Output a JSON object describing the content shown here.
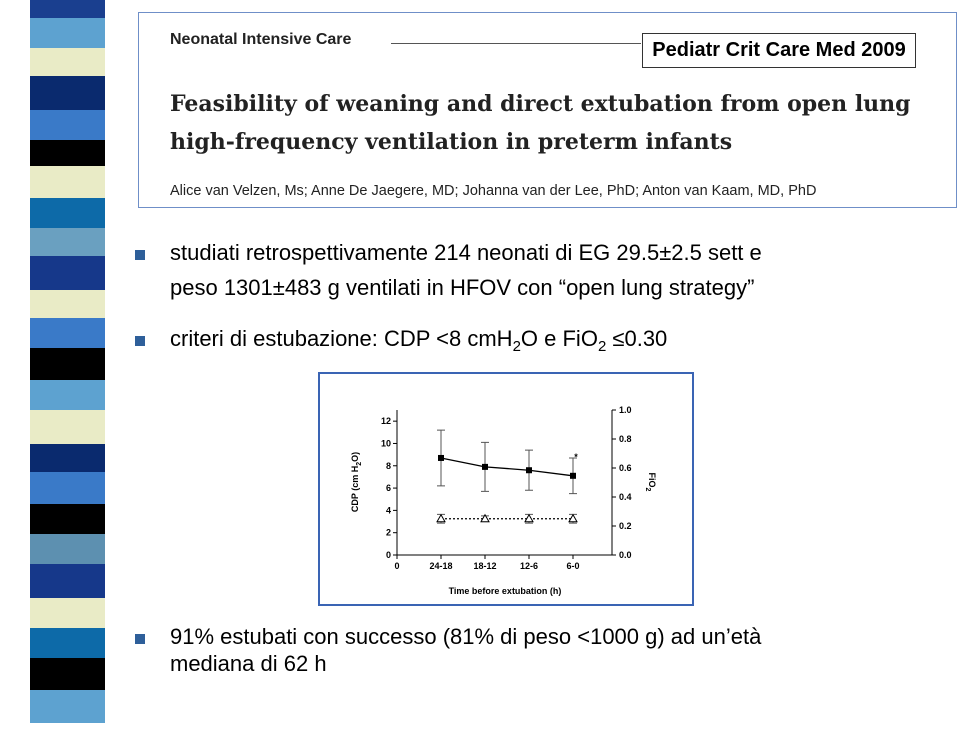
{
  "header": {
    "section": "Neonatal Intensive Care",
    "journal": "Pediatr Crit Care Med 2009",
    "title_lines": [
      "Feasibility of weaning and direct extubation from open lung",
      "high-frequency ventilation in preterm infants"
    ],
    "authors": "Alice van Velzen, Ms; Anne De Jaegere, MD; Johanna van der Lee, PhD; Anton van Kaam, MD, PhD"
  },
  "bullets": [
    {
      "lines": [
        "studiati retrospettivamente 214 neonati di EG 29.5±2.5 sett e",
        "peso 1301±483 g ventilati in HFOV con “open lung strategy”"
      ]
    },
    {
      "parts": [
        "criteri di estubazione: CDP <8 cmH",
        "2",
        "O e FiO",
        "2",
        " ≤0.30"
      ]
    },
    {
      "lines": [
        "91% estubati con successo (81% di peso <1000 g) ad un’età",
        "mediana di 62 h"
      ]
    }
  ],
  "figure": {
    "chart_data": {
      "type": "line",
      "x_label": "Time before extubation (h)",
      "y_label_parts": [
        "CDP (cm H",
        "2",
        "O)"
      ],
      "y2_label_parts": [
        "FiO",
        "2"
      ],
      "annotation": "*",
      "categories": [
        "0",
        "24-18",
        "18-12",
        "12-6",
        "6-0"
      ],
      "ylim": [
        0,
        13
      ],
      "yticks": [
        0,
        2,
        4,
        6,
        8,
        10,
        12
      ],
      "y2lim": [
        0,
        1
      ],
      "y2ticks": [
        {
          "value": 0,
          "label": "0.0"
        },
        0.2,
        0.4,
        0.6,
        0.8,
        {
          "value": 1,
          "label": "1.0"
        }
      ],
      "series": [
        {
          "color": "#000000",
          "marker": "square",
          "dash": "solid",
          "values": [
            null,
            8.7,
            7.9,
            7.6,
            7.1
          ],
          "errors": [
            null,
            2.5,
            2.2,
            1.8,
            1.6
          ]
        },
        {
          "color": "#000000",
          "marker": "triangle",
          "dash": "dotted",
          "axis": "y2",
          "values": [
            null,
            0.25,
            0.25,
            0.25,
            0.25
          ],
          "errors": [
            null,
            0.03,
            0.02,
            0.03,
            0.03
          ]
        }
      ]
    }
  }
}
